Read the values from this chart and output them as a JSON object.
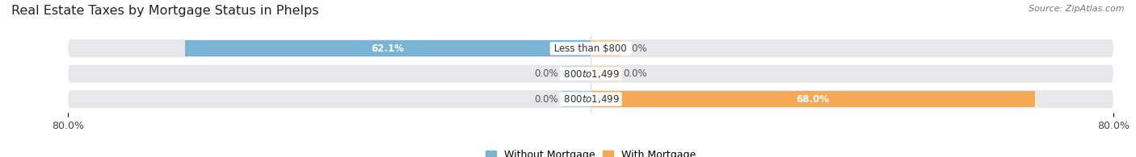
{
  "title": "Real Estate Taxes by Mortgage Status in Phelps",
  "source": "Source: ZipAtlas.com",
  "categories": [
    "Less than $800",
    "$800 to $1,499",
    "$800 to $1,499"
  ],
  "without_mortgage": [
    62.1,
    0.0,
    0.0
  ],
  "with_mortgage": [
    0.0,
    0.0,
    68.0
  ],
  "xlim": 80.0,
  "color_without": "#7ab4d4",
  "color_with": "#f5a855",
  "color_without_stub": "#aecfe8",
  "color_with_stub": "#f5cfa0",
  "bar_height": 0.62,
  "bg_color": "#e8e8eb",
  "title_fontsize": 11.5,
  "label_fontsize": 8.5,
  "tick_fontsize": 9,
  "legend_fontsize": 9,
  "source_fontsize": 8
}
